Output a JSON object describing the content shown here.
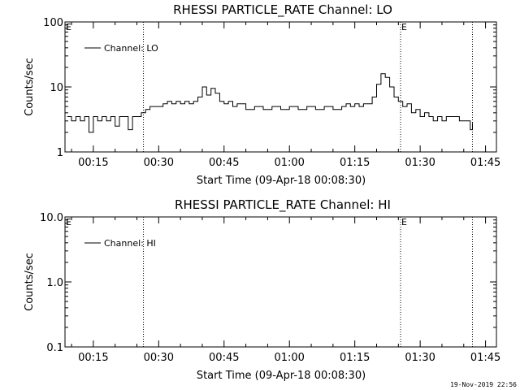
{
  "footer": "19-Nov-2019 22:56",
  "chart_data": [
    {
      "type": "line",
      "title": "RHESSI PARTICLE_RATE Channel: LO",
      "xlabel": "Start Time (09-Apr-18 00:08:30)",
      "ylabel": "Counts/sec",
      "yscale": "log",
      "ylim": [
        1,
        100
      ],
      "xlim": [
        "00:08:30",
        "01:47:30"
      ],
      "xticks": [
        "00:15",
        "00:30",
        "00:45",
        "01:00",
        "01:15",
        "01:30",
        "01:45"
      ],
      "yticks": [
        1,
        10,
        100
      ],
      "yticklabels": [
        "1",
        "10",
        "100"
      ],
      "legend": "top-left",
      "vlines": [
        "00:26:30",
        "01:25:30",
        "01:42:00"
      ],
      "markers": [
        {
          "text": "E",
          "x": "00:08:30"
        },
        {
          "text": "E",
          "x": "01:25:30"
        }
      ],
      "series": [
        {
          "name": "Channel: LO",
          "x": [
            "00:09",
            "00:10",
            "00:11",
            "00:12",
            "00:13",
            "00:14",
            "00:15",
            "00:16",
            "00:17",
            "00:18",
            "00:19",
            "00:20",
            "00:21",
            "00:22",
            "00:23",
            "00:24",
            "00:25",
            "00:26",
            "00:27",
            "00:28",
            "00:29",
            "00:30",
            "00:31",
            "00:32",
            "00:33",
            "00:34",
            "00:35",
            "00:36",
            "00:37",
            "00:38",
            "00:39",
            "00:40",
            "00:41",
            "00:42",
            "00:43",
            "00:44",
            "00:45",
            "00:46",
            "00:47",
            "00:48",
            "00:50",
            "00:52",
            "00:54",
            "00:56",
            "00:58",
            "01:00",
            "01:02",
            "01:04",
            "01:06",
            "01:08",
            "01:10",
            "01:12",
            "01:13",
            "01:14",
            "01:15",
            "01:16",
            "01:17",
            "01:18",
            "01:19",
            "01:20",
            "01:21",
            "01:22",
            "01:23",
            "01:24",
            "01:25",
            "01:26",
            "01:27",
            "01:28",
            "01:29",
            "01:30",
            "01:31",
            "01:32",
            "01:33",
            "01:34",
            "01:35",
            "01:36",
            "01:37",
            "01:38",
            "01:39",
            "01:40",
            "01:41",
            "01:41:30",
            "01:42"
          ],
          "values": [
            3.5,
            3,
            3.5,
            3,
            3.5,
            2,
            3.5,
            3,
            3.5,
            3,
            3.5,
            2.5,
            3.5,
            3.5,
            2.2,
            3.5,
            3.5,
            4,
            4.5,
            5,
            5,
            5,
            5.5,
            6,
            5.5,
            6,
            5.5,
            6,
            5.5,
            6,
            7,
            10,
            7.5,
            9.5,
            8,
            6,
            5.5,
            6,
            5,
            5.5,
            4.5,
            5,
            4.5,
            5,
            4.5,
            5,
            4.5,
            5,
            4.5,
            5,
            4.5,
            5,
            5.5,
            5,
            5.5,
            5,
            5.5,
            5.5,
            7,
            11,
            16,
            14,
            10,
            7,
            6,
            5,
            5.5,
            4,
            4.5,
            3.5,
            4,
            3.5,
            3,
            3.5,
            3,
            3.5,
            3.5,
            3.5,
            3,
            3,
            3,
            2.2,
            2.8
          ]
        }
      ]
    },
    {
      "type": "line",
      "title": "RHESSI PARTICLE_RATE Channel: HI",
      "xlabel": "Start Time (09-Apr-18 00:08:30)",
      "ylabel": "Counts/sec",
      "yscale": "log",
      "ylim": [
        0.1,
        10
      ],
      "xlim": [
        "00:08:30",
        "01:47:30"
      ],
      "xticks": [
        "00:15",
        "00:30",
        "00:45",
        "01:00",
        "01:15",
        "01:30",
        "01:45"
      ],
      "yticks": [
        0.1,
        1,
        10
      ],
      "yticklabels": [
        "0.1",
        "1.0",
        "10.0"
      ],
      "legend": "top-left",
      "vlines": [
        "00:26:30",
        "01:25:30",
        "01:42:00"
      ],
      "markers": [
        {
          "text": "E",
          "x": "00:08:30"
        },
        {
          "text": "E",
          "x": "01:25:30"
        }
      ],
      "series": [
        {
          "name": "Channel: HI",
          "x": [],
          "values": []
        }
      ]
    }
  ]
}
